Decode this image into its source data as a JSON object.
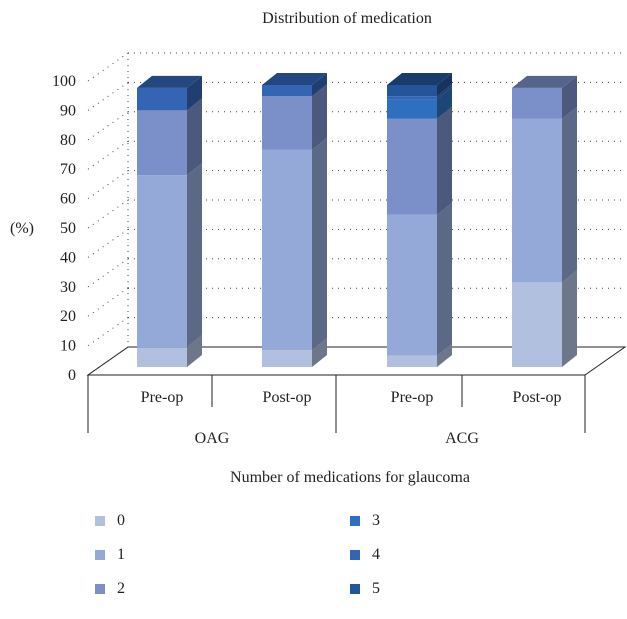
{
  "chart_data": {
    "type": "bar",
    "stacked": true,
    "three_d": true,
    "title": "Distribution of medication",
    "ylabel": "(%)",
    "xlabel": "Number of medications for glaucoma",
    "ylim": [
      0,
      100
    ],
    "yticks": [
      "0",
      "10",
      "20",
      "30",
      "40",
      "50",
      "60",
      "70",
      "80",
      "90",
      "100"
    ],
    "grid": true,
    "legend_position": "bottom",
    "groups": [
      {
        "label": "OAG",
        "categories": [
          "Pre-op",
          "Post-op"
        ]
      },
      {
        "label": "ACG",
        "categories": [
          "Pre-op",
          "Post-op"
        ]
      }
    ],
    "categories": [
      "Pre-op",
      "Post-op",
      "Pre-op",
      "Post-op"
    ],
    "series": [
      {
        "name": "0",
        "color": "#b2c0df",
        "values": [
          7,
          6,
          4,
          30
        ]
      },
      {
        "name": "1",
        "color": "#94a9d8",
        "values": [
          61,
          71,
          50,
          58
        ]
      },
      {
        "name": "2",
        "color": "#7b8fc8",
        "values": [
          23,
          19,
          34,
          11
        ]
      },
      {
        "name": "3",
        "color": "#2f6fbf",
        "values": [
          0,
          0,
          7,
          0
        ]
      },
      {
        "name": "4",
        "color": "#3465b5",
        "values": [
          8,
          4,
          1,
          0
        ]
      },
      {
        "name": "5",
        "color": "#24549a",
        "values": [
          0,
          0,
          4,
          0
        ]
      }
    ]
  }
}
